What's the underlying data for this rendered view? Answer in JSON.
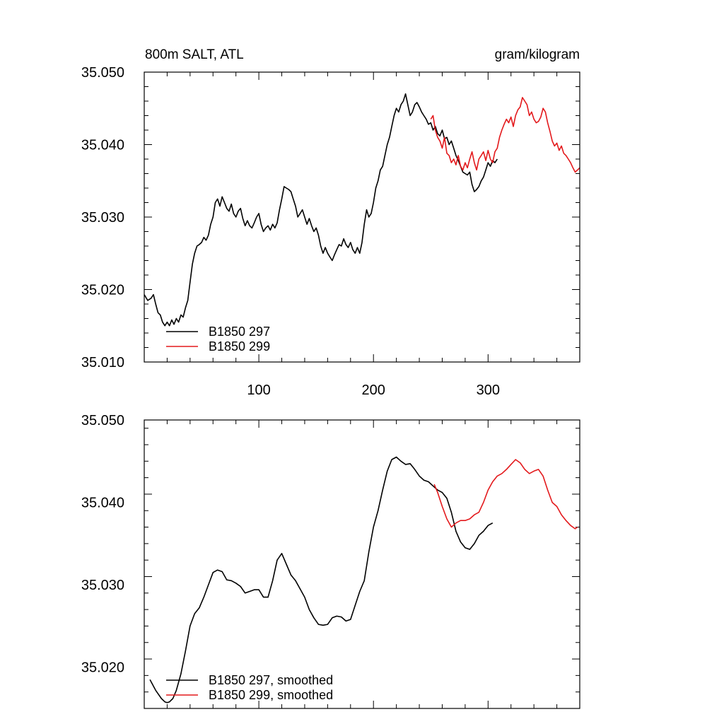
{
  "chart_data": [
    {
      "type": "line",
      "title": "800m SALT, ATL",
      "units": "gram/kilogram",
      "xlim": [
        0,
        380
      ],
      "ylim": [
        35.01,
        35.05
      ],
      "xticks": [
        100,
        200,
        300
      ],
      "xtick_labels": [
        "100",
        "200",
        "300"
      ],
      "yticks": [
        35.01,
        35.02,
        35.03,
        35.04,
        35.05
      ],
      "ytick_labels": [
        "35.010",
        "35.020",
        "35.030",
        "35.040",
        "35.050"
      ],
      "legend_position": "bottom-left",
      "series": [
        {
          "name": "B1850 297",
          "color": "#000000",
          "x": [
            0,
            3,
            6,
            8,
            10,
            12,
            14,
            16,
            18,
            20,
            22,
            24,
            26,
            28,
            30,
            32,
            34,
            36,
            38,
            40,
            42,
            44,
            46,
            48,
            50,
            52,
            54,
            56,
            58,
            60,
            62,
            64,
            66,
            68,
            70,
            72,
            74,
            76,
            78,
            80,
            82,
            84,
            86,
            88,
            90,
            92,
            94,
            96,
            98,
            100,
            102,
            104,
            106,
            108,
            110,
            112,
            114,
            116,
            118,
            120,
            122,
            124,
            126,
            128,
            130,
            132,
            134,
            136,
            138,
            140,
            142,
            144,
            146,
            148,
            150,
            152,
            154,
            156,
            158,
            160,
            162,
            164,
            166,
            168,
            170,
            172,
            174,
            176,
            178,
            180,
            182,
            184,
            186,
            188,
            190,
            192,
            194,
            196,
            198,
            200,
            202,
            204,
            206,
            208,
            210,
            212,
            214,
            216,
            218,
            220,
            222,
            224,
            226,
            228,
            230,
            232,
            234,
            236,
            238,
            240,
            242,
            244,
            246,
            248,
            250,
            252,
            254,
            256,
            258,
            260,
            262,
            264,
            266,
            268,
            270,
            272,
            274,
            276,
            278,
            280,
            282,
            284,
            286,
            288,
            290,
            292,
            294,
            296,
            298,
            300,
            302,
            304,
            306,
            308
          ],
          "y": [
            35.0193,
            35.0185,
            35.0188,
            35.0193,
            35.018,
            35.0168,
            35.0165,
            35.0155,
            35.015,
            35.0155,
            35.015,
            35.0158,
            35.0152,
            35.016,
            35.0155,
            35.0165,
            35.0162,
            35.0175,
            35.0185,
            35.021,
            35.0235,
            35.025,
            35.026,
            35.0262,
            35.0265,
            35.0272,
            35.0268,
            35.0275,
            35.029,
            35.03,
            35.032,
            35.0325,
            35.0315,
            35.0328,
            35.032,
            35.0312,
            35.0308,
            35.0318,
            35.0305,
            35.03,
            35.0308,
            35.0312,
            35.0298,
            35.0288,
            35.0295,
            35.0288,
            35.0285,
            35.0292,
            35.03,
            35.0305,
            35.029,
            35.028,
            35.0285,
            35.0288,
            35.0282,
            35.029,
            35.0285,
            35.0292,
            35.031,
            35.0325,
            35.0342,
            35.034,
            35.0338,
            35.0335,
            35.0325,
            35.0315,
            35.03,
            35.0305,
            35.031,
            35.03,
            35.029,
            35.0298,
            35.0288,
            35.028,
            35.0285,
            35.0275,
            35.026,
            35.025,
            35.0258,
            35.025,
            35.0245,
            35.024,
            35.0248,
            35.0255,
            35.0262,
            35.026,
            35.027,
            35.0262,
            35.0258,
            35.0265,
            35.0255,
            35.025,
            35.0258,
            35.025,
            35.0265,
            35.029,
            35.031,
            35.03,
            35.0305,
            35.032,
            35.034,
            35.035,
            35.0365,
            35.037,
            35.0385,
            35.04,
            35.041,
            35.0425,
            35.044,
            35.045,
            35.0445,
            35.0455,
            35.046,
            35.047,
            35.0455,
            35.044,
            35.0445,
            35.0455,
            35.0458,
            35.0452,
            35.0445,
            35.044,
            35.0435,
            35.0428,
            35.043,
            35.042,
            35.0425,
            35.0415,
            35.0412,
            35.042,
            35.0408,
            35.041,
            35.04,
            35.0405,
            35.0395,
            35.0385,
            35.0378,
            35.037,
            35.0362,
            35.036,
            35.0358,
            35.0362,
            35.0345,
            35.0335,
            35.0338,
            35.0342,
            35.035,
            35.0355,
            35.0365,
            35.0375,
            35.037,
            35.0378,
            35.0375,
            35.038
          ]
        },
        {
          "name": "B1850 299",
          "color": "#e3191c",
          "x": [
            250,
            252,
            254,
            256,
            258,
            260,
            262,
            264,
            266,
            268,
            270,
            272,
            274,
            276,
            278,
            280,
            282,
            284,
            286,
            288,
            290,
            292,
            294,
            296,
            298,
            300,
            302,
            304,
            306,
            308,
            310,
            312,
            314,
            316,
            318,
            320,
            322,
            324,
            326,
            328,
            330,
            332,
            334,
            336,
            338,
            340,
            342,
            344,
            346,
            348,
            350,
            352,
            354,
            356,
            358,
            360,
            362,
            364,
            366,
            368,
            370,
            372,
            374,
            376,
            378,
            380
          ],
          "y": [
            35.0435,
            35.044,
            35.042,
            35.041,
            35.0405,
            35.0395,
            35.041,
            35.0388,
            35.0385,
            35.0375,
            35.038,
            35.0372,
            35.0385,
            35.037,
            35.0365,
            35.0375,
            35.0368,
            35.038,
            35.039,
            35.0375,
            35.0365,
            35.038,
            35.0385,
            35.039,
            35.0378,
            35.0392,
            35.038,
            35.0375,
            35.039,
            35.0395,
            35.041,
            35.042,
            35.0428,
            35.0435,
            35.043,
            35.0438,
            35.0425,
            35.044,
            35.0448,
            35.0452,
            35.0465,
            35.046,
            35.0455,
            35.044,
            35.0445,
            35.0435,
            35.043,
            35.0432,
            35.0438,
            35.045,
            35.0445,
            35.043,
            35.0418,
            35.0405,
            35.0398,
            35.0402,
            35.0392,
            35.0398,
            35.0388,
            35.0385,
            35.038,
            35.0375,
            35.0368,
            35.0362,
            35.0365,
            35.0368
          ]
        }
      ]
    },
    {
      "type": "line",
      "xlim": [
        0,
        380
      ],
      "ylim": [
        35.015,
        35.05
      ],
      "xticks": [
        100,
        200,
        300
      ],
      "yticks": [
        35.02,
        35.03,
        35.04,
        35.05
      ],
      "ytick_labels": [
        "35.020",
        "35.030",
        "35.040",
        "35.050"
      ],
      "legend_position": "bottom-left",
      "series": [
        {
          "name": "B1850 297, smoothed",
          "color": "#000000",
          "x": [
            5,
            10,
            15,
            18,
            20,
            22,
            25,
            28,
            32,
            36,
            40,
            44,
            48,
            52,
            56,
            60,
            64,
            68,
            72,
            76,
            80,
            84,
            88,
            92,
            96,
            100,
            104,
            108,
            112,
            116,
            120,
            124,
            128,
            132,
            136,
            140,
            144,
            148,
            152,
            156,
            160,
            164,
            168,
            172,
            176,
            180,
            184,
            188,
            192,
            196,
            200,
            204,
            208,
            212,
            216,
            220,
            224,
            228,
            232,
            236,
            240,
            244,
            248,
            252,
            256,
            260,
            264,
            268,
            272,
            276,
            280,
            284,
            288,
            292,
            296,
            300,
            304
          ],
          "y": [
            35.0185,
            35.0172,
            35.0162,
            35.0158,
            35.0157,
            35.0158,
            35.0162,
            35.0172,
            35.0192,
            35.022,
            35.025,
            35.0265,
            35.0272,
            35.0285,
            35.03,
            35.0315,
            35.0318,
            35.0316,
            35.0306,
            35.0305,
            35.0302,
            35.0298,
            35.029,
            35.0292,
            35.0294,
            35.0294,
            35.0285,
            35.0285,
            35.0305,
            35.033,
            35.0338,
            35.0325,
            35.0312,
            35.0305,
            35.0295,
            35.0285,
            35.027,
            35.026,
            35.0252,
            35.0251,
            35.0252,
            35.026,
            35.0262,
            35.0261,
            35.0256,
            35.0258,
            35.0275,
            35.0292,
            35.0305,
            35.034,
            35.037,
            35.039,
            35.0415,
            35.0438,
            35.0452,
            35.0455,
            35.045,
            35.0446,
            35.0447,
            35.044,
            35.0432,
            35.0427,
            35.0425,
            35.042,
            35.0415,
            35.0412,
            35.0405,
            35.0388,
            35.0365,
            35.0352,
            35.0345,
            35.0343,
            35.035,
            35.036,
            35.0365,
            35.0372,
            35.0375
          ]
        },
        {
          "name": "B1850 299, smoothed",
          "color": "#e3191c",
          "x": [
            253,
            256,
            260,
            264,
            268,
            272,
            276,
            280,
            284,
            288,
            292,
            296,
            300,
            304,
            308,
            312,
            316,
            320,
            324,
            328,
            332,
            336,
            340,
            344,
            348,
            352,
            356,
            360,
            364,
            368,
            372,
            376,
            378
          ],
          "y": [
            35.0422,
            35.0412,
            35.0395,
            35.038,
            35.037,
            35.0375,
            35.0378,
            35.0378,
            35.038,
            35.0385,
            35.0388,
            35.04,
            35.0415,
            35.0425,
            35.0432,
            35.0435,
            35.044,
            35.0446,
            35.0452,
            35.0448,
            35.044,
            35.0435,
            35.0438,
            35.044,
            35.0432,
            35.0415,
            35.04,
            35.0395,
            35.0385,
            35.0378,
            35.0372,
            35.0368,
            35.037
          ]
        }
      ]
    }
  ]
}
